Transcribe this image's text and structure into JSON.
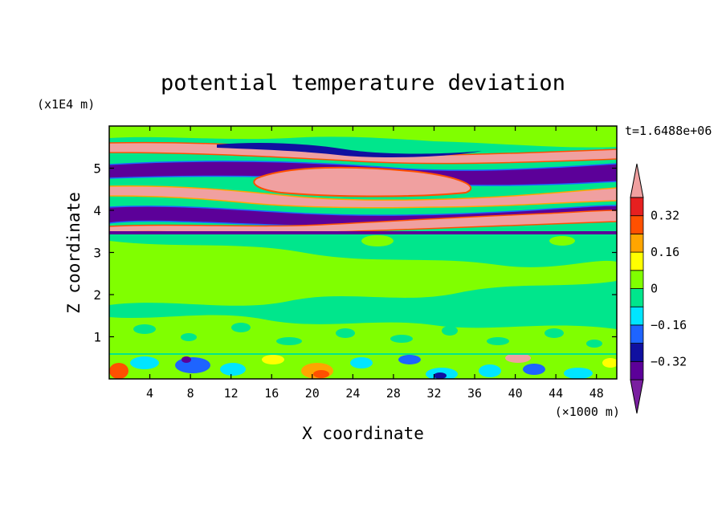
{
  "chart_data": {
    "type": "heatmap",
    "title": "potential temperature deviation",
    "xlabel": "X coordinate",
    "ylabel": "Z coordinate",
    "x_unit": "(×1000 m)",
    "y_unit": "(x1E4 m)",
    "time_label": "t=1.6488e+06",
    "xlim": [
      0,
      50
    ],
    "ylim": [
      0,
      6
    ],
    "x_ticks": [
      4,
      8,
      12,
      16,
      20,
      24,
      28,
      32,
      36,
      40,
      44,
      48
    ],
    "y_ticks": [
      1,
      2,
      3,
      4,
      5
    ],
    "colorbar": {
      "levels": [
        -0.4,
        -0.32,
        -0.24,
        -0.16,
        -0.08,
        0,
        0.08,
        0.16,
        0.24,
        0.32,
        0.4
      ],
      "tick_labels": [
        "0.32",
        "0.16",
        "0",
        "−0.16",
        "−0.32"
      ],
      "tick_values": [
        0.32,
        0.16,
        0,
        -0.16,
        -0.32
      ],
      "colors_low_to_high": [
        "#7a1fa0",
        "#5c0099",
        "#1010a0",
        "#1e64ff",
        "#00e5ff",
        "#00e68c",
        "#80ff00",
        "#ffff00",
        "#ffa500",
        "#ff5000",
        "#e62020",
        "#f0a0a0"
      ]
    },
    "bands": [
      {
        "zmin": 0.0,
        "zmax": 0.6,
        "level": "mixed",
        "note": "surface layer with alternating positive and negative patches"
      },
      {
        "zmin": 0.6,
        "zmax": 3.5,
        "level": 0.04,
        "note": "near zero, green and light green mottled"
      },
      {
        "zmin": 3.5,
        "zmax": 4.05,
        "level": 0.4,
        "note": "positive band rising to the right"
      },
      {
        "zmin": 3.9,
        "zmax": 4.3,
        "level": -0.4,
        "note": "negative band"
      },
      {
        "zmin": 4.3,
        "zmax": 4.9,
        "level": 0.4,
        "note": "positive lens centered near x=24-32"
      },
      {
        "zmin": 4.5,
        "zmax": 5.1,
        "level": -0.4,
        "note": "negative band"
      },
      {
        "zmin": 5.0,
        "zmax": 5.4,
        "level": 0.4,
        "note": "positive band near top"
      },
      {
        "zmin": 5.4,
        "zmax": 6.0,
        "level": 0.04,
        "note": "near zero at top"
      }
    ]
  }
}
